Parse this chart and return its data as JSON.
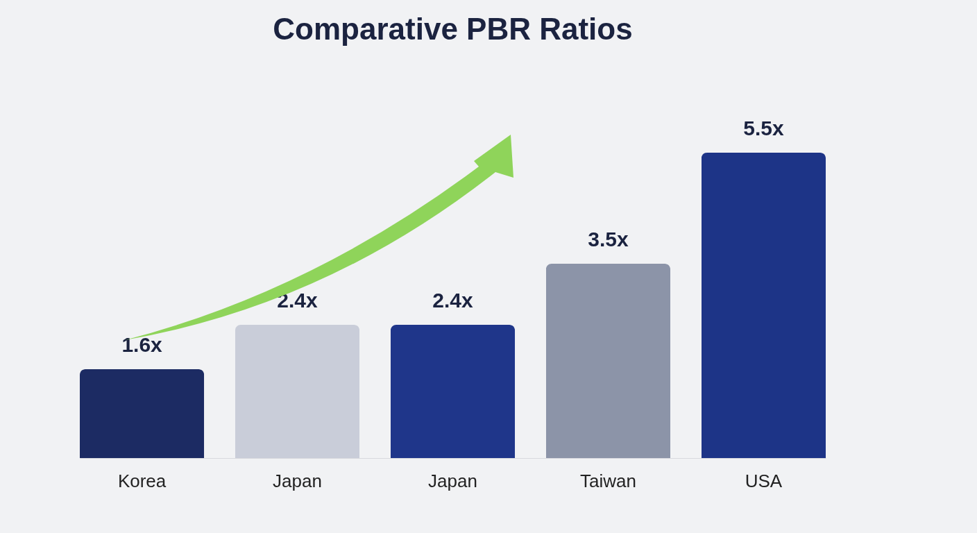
{
  "chart_data": {
    "type": "bar",
    "title": "Comparative PBR Ratios",
    "categories": [
      "Korea",
      "Japan",
      "Japan",
      "Taiwan",
      "USA"
    ],
    "values": [
      1.6,
      2.4,
      2.4,
      3.5,
      5.5
    ],
    "colors": [
      "#1c2b63",
      "#c9cdd9",
      "#1f368a",
      "#8c94a8",
      "#1d3487"
    ],
    "value_labels": [
      "1.6x",
      "2.4x",
      "2.4x",
      "3.5x",
      "5.5x"
    ]
  }
}
